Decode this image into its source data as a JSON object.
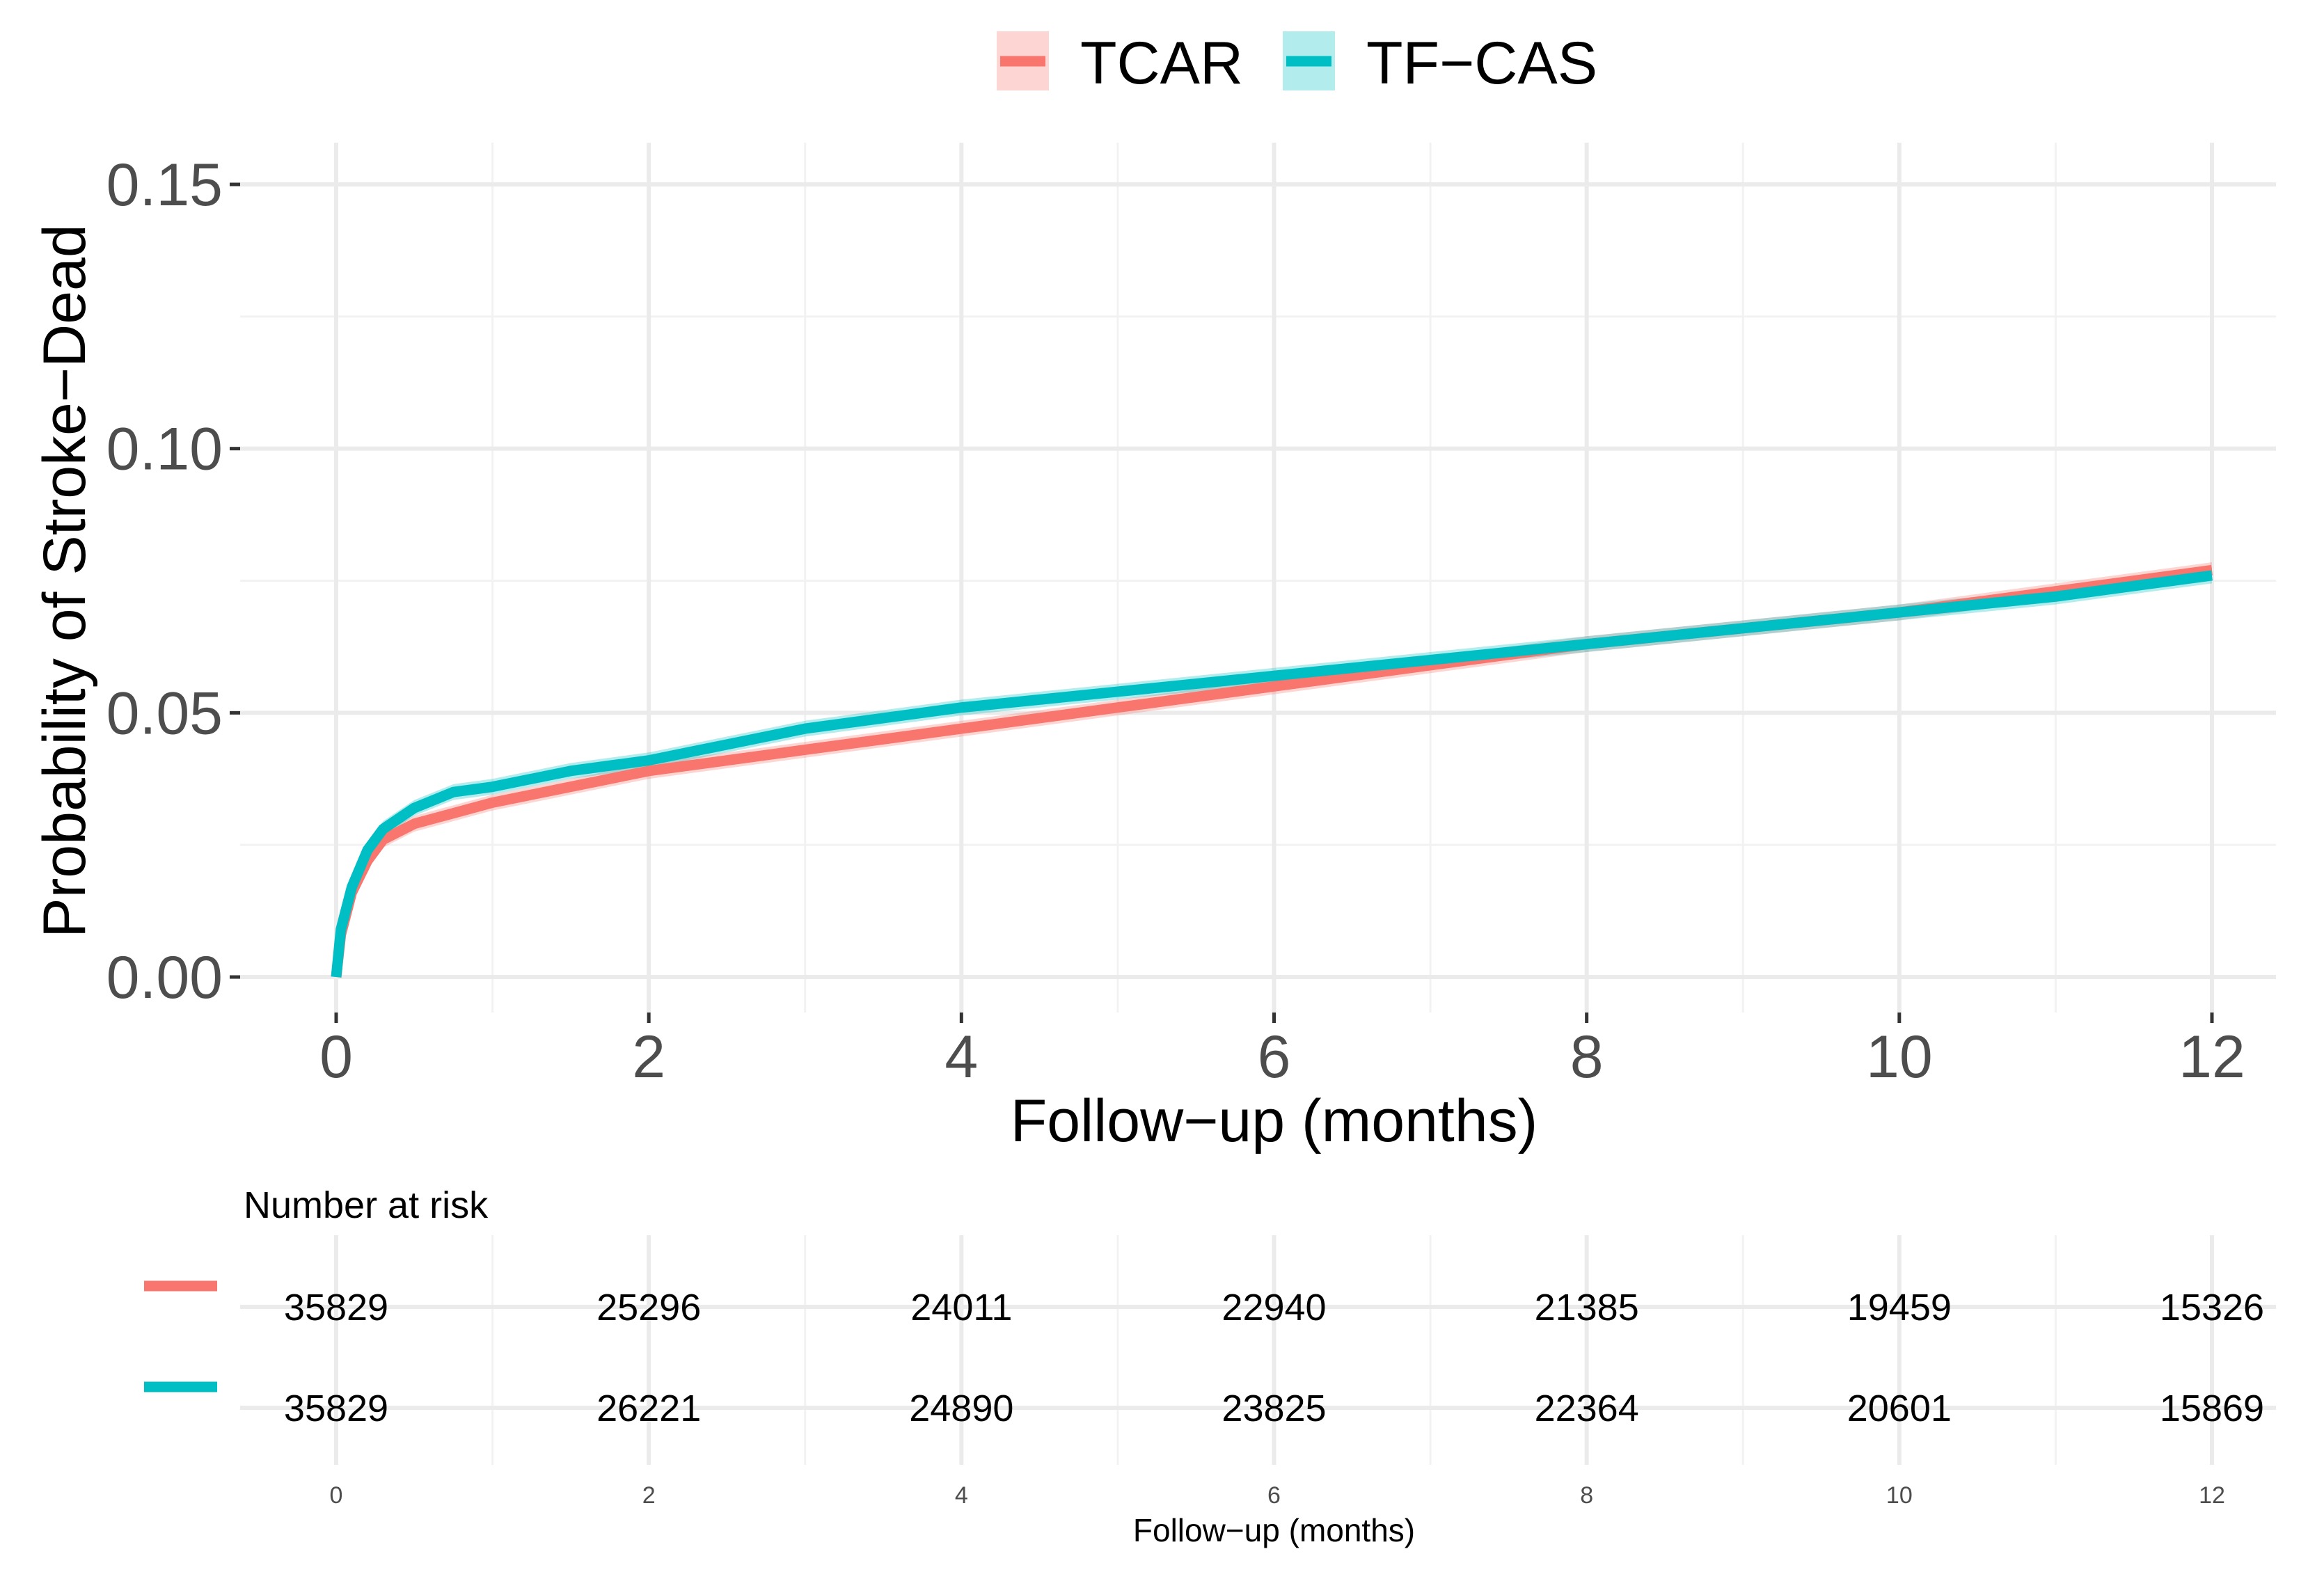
{
  "chart_data": [
    {
      "type": "line",
      "title": "",
      "xlabel": "Follow−up (months)",
      "ylabel": "Probability of Stroke−Dead",
      "xlim": [
        0,
        12
      ],
      "ylim": [
        0,
        0.15
      ],
      "x_ticks": [
        0,
        2,
        4,
        6,
        8,
        10,
        12
      ],
      "y_ticks": [
        0.0,
        0.05,
        0.1,
        0.15
      ],
      "y_tick_labels": [
        "0.00",
        "0.05",
        "0.10",
        "0.15"
      ],
      "grid": true,
      "legend_position": "top-center",
      "series": [
        {
          "name": "TCAR",
          "color": "#F8766D",
          "band_color": "#F8766D",
          "points": [
            [
              0,
              0
            ],
            [
              0.03,
              0.008
            ],
            [
              0.1,
              0.016
            ],
            [
              0.2,
              0.022
            ],
            [
              0.3,
              0.026
            ],
            [
              0.5,
              0.029
            ],
            [
              0.75,
              0.031
            ],
            [
              1,
              0.033
            ],
            [
              1.5,
              0.036
            ],
            [
              2,
              0.039
            ],
            [
              3,
              0.043
            ],
            [
              4,
              0.047
            ],
            [
              5,
              0.051
            ],
            [
              6,
              0.055
            ],
            [
              7,
              0.059
            ],
            [
              8,
              0.063
            ],
            [
              9,
              0.066
            ],
            [
              10,
              0.069
            ],
            [
              11,
              0.073
            ],
            [
              12,
              0.077
            ]
          ],
          "ci_halfwidth": 0.0015
        },
        {
          "name": "TF−CAS",
          "color": "#00BFC4",
          "band_color": "#00BFC4",
          "points": [
            [
              0,
              0
            ],
            [
              0.03,
              0.009
            ],
            [
              0.1,
              0.017
            ],
            [
              0.2,
              0.024
            ],
            [
              0.3,
              0.028
            ],
            [
              0.5,
              0.032
            ],
            [
              0.75,
              0.035
            ],
            [
              1,
              0.036
            ],
            [
              1.5,
              0.039
            ],
            [
              2,
              0.041
            ],
            [
              3,
              0.047
            ],
            [
              4,
              0.051
            ],
            [
              5,
              0.054
            ],
            [
              6,
              0.057
            ],
            [
              7,
              0.06
            ],
            [
              8,
              0.063
            ],
            [
              9,
              0.066
            ],
            [
              10,
              0.069
            ],
            [
              11,
              0.072
            ],
            [
              12,
              0.076
            ]
          ],
          "ci_halfwidth": 0.0015
        }
      ]
    },
    {
      "type": "table",
      "title": "Number at risk",
      "xlabel": "Follow−up (months)",
      "columns": [
        0,
        2,
        4,
        6,
        8,
        10,
        12
      ],
      "rows": [
        {
          "name": "TCAR",
          "color": "#F8766D",
          "values": [
            "35829",
            "25296",
            "24011",
            "22940",
            "21385",
            "19459",
            "15326"
          ]
        },
        {
          "name": "TF−CAS",
          "color": "#00BFC4",
          "values": [
            "35829",
            "26221",
            "24890",
            "23825",
            "22364",
            "20601",
            "15869"
          ]
        }
      ]
    }
  ]
}
